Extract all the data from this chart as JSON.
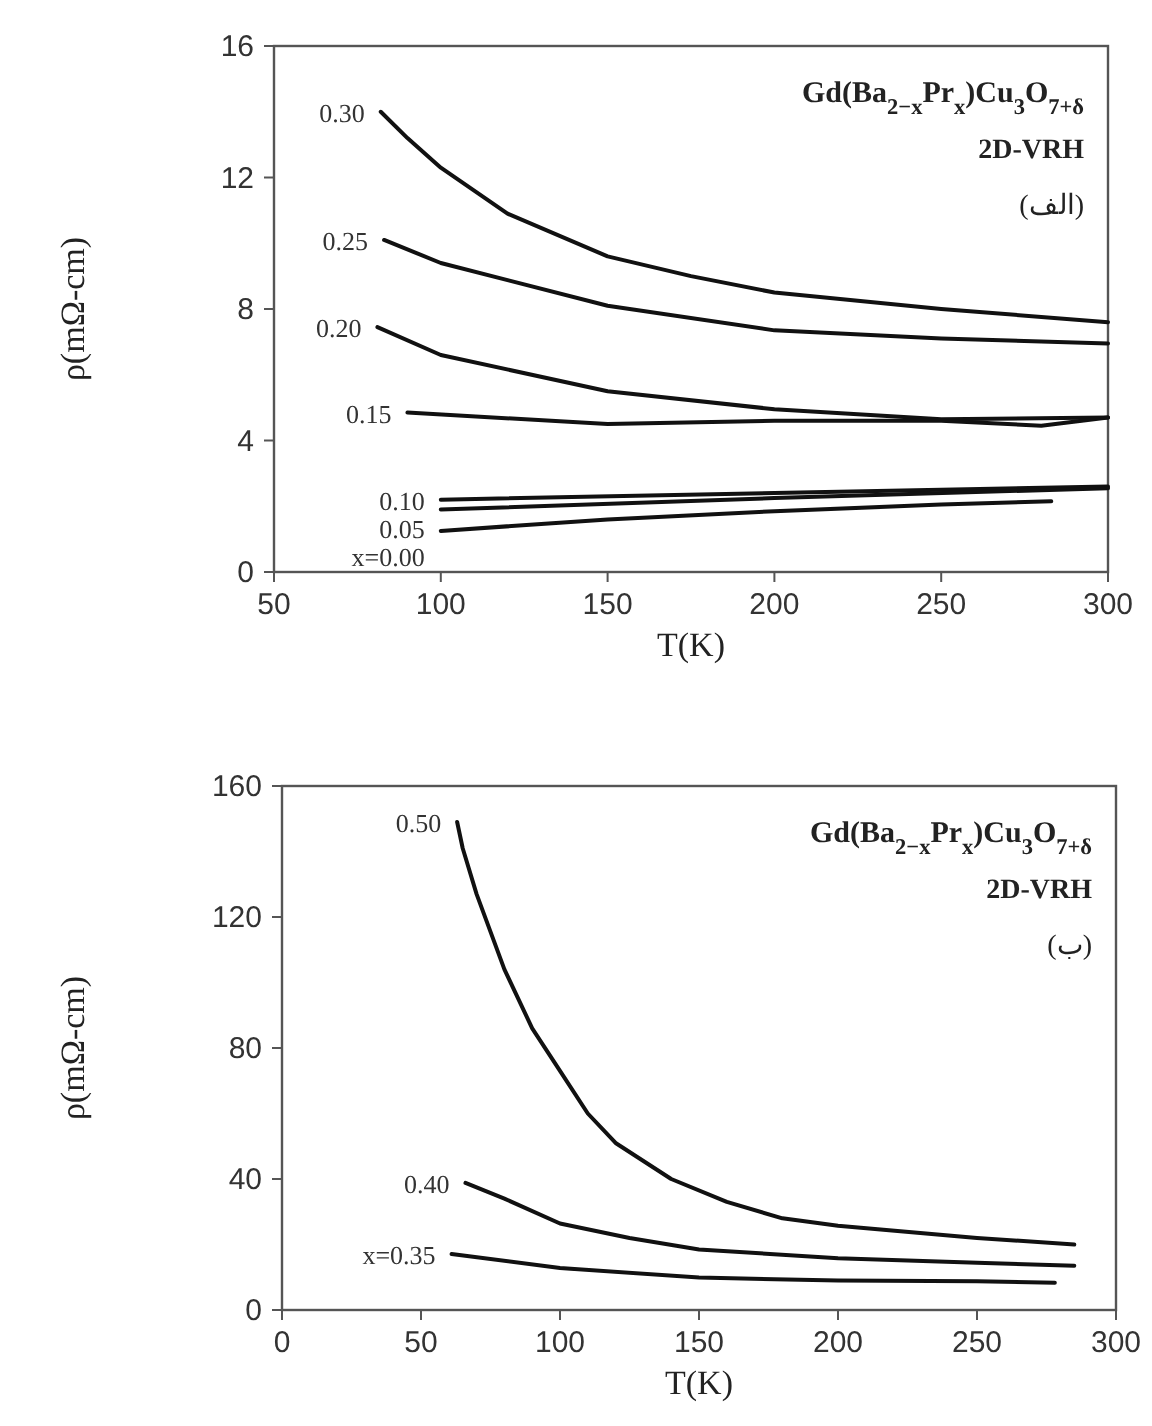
{
  "chart_data": [
    {
      "type": "line",
      "xlabel": "T(K)",
      "ylabel": "ρ(mΩ-cm)",
      "xlim": [
        50,
        300
      ],
      "ylim": [
        0,
        16
      ],
      "xticks": [
        50,
        100,
        150,
        200,
        250,
        300
      ],
      "yticks": [
        0,
        4,
        8,
        12,
        16
      ],
      "grid": false,
      "legend": false,
      "line_style": "solid",
      "marker": "none",
      "annotations": [
        "Gd(Ba$_{2−x}$Pr$_{x}$)Cu$_{3}$O$_{7+δ}$",
        "2D-VRH",
        "(الف)"
      ],
      "series": [
        {
          "name": "0.30",
          "color": "#111111",
          "x": [
            82,
            90,
            100,
            120,
            150,
            175,
            200,
            250,
            300
          ],
          "values": [
            14.0,
            13.2,
            12.3,
            10.9,
            9.6,
            9.0,
            8.5,
            8.0,
            7.6
          ]
        },
        {
          "name": "0.25",
          "color": "#111111",
          "x": [
            83,
            100,
            150,
            200,
            250,
            300
          ],
          "values": [
            10.1,
            9.4,
            8.1,
            7.35,
            7.1,
            6.95
          ]
        },
        {
          "name": "0.20",
          "color": "#111111",
          "x": [
            81,
            100,
            150,
            200,
            250,
            300
          ],
          "values": [
            7.45,
            6.6,
            5.5,
            4.95,
            4.65,
            4.7
          ]
        },
        {
          "name": "0.15",
          "color": "#111111",
          "x": [
            90,
            150,
            200,
            250,
            280,
            300
          ],
          "values": [
            4.85,
            4.5,
            4.6,
            4.6,
            4.45,
            4.7
          ]
        },
        {
          "name": "0.10",
          "color": "#111111",
          "x": [
            100,
            200,
            300
          ],
          "values": [
            2.2,
            2.4,
            2.6
          ]
        },
        {
          "name": "0.05",
          "color": "#111111",
          "x": [
            100,
            200,
            300
          ],
          "values": [
            1.9,
            2.25,
            2.55
          ]
        },
        {
          "name": "x=0.00",
          "color": "#111111",
          "x": [
            100,
            150,
            200,
            250,
            283
          ],
          "values": [
            1.25,
            1.6,
            1.85,
            2.05,
            2.15
          ]
        }
      ]
    },
    {
      "type": "line",
      "xlabel": "T(K)",
      "ylabel": "ρ(mΩ-cm)",
      "xlim": [
        0,
        300
      ],
      "ylim": [
        0,
        160
      ],
      "xticks": [
        0,
        50,
        100,
        150,
        200,
        250,
        300
      ],
      "yticks": [
        0,
        40,
        80,
        120,
        160
      ],
      "grid": false,
      "legend": false,
      "line_style": "solid",
      "marker": "none",
      "annotations": [
        "Gd(Ba$_{2−x}$Pr$_{x}$)Cu$_{3}$O$_{7+δ}$",
        "2D-VRH",
        "(ب)"
      ],
      "series": [
        {
          "name": "0.50",
          "color": "#111111",
          "x": [
            63,
            65,
            70,
            80,
            90,
            100,
            110,
            120,
            140,
            160,
            180,
            200,
            250,
            285
          ],
          "values": [
            149,
            141,
            127,
            104,
            86,
            73,
            60,
            51,
            40,
            33,
            28,
            25.7,
            22,
            20
          ]
        },
        {
          "name": "0.40",
          "color": "#111111",
          "x": [
            66,
            80,
            100,
            125,
            150,
            200,
            250,
            285
          ],
          "values": [
            38.8,
            34,
            26.4,
            22,
            18.5,
            15.8,
            14.4,
            13.5
          ]
        },
        {
          "name": "x=0.35",
          "color": "#111111",
          "x": [
            61,
            100,
            150,
            200,
            250,
            278
          ],
          "values": [
            17.1,
            12.8,
            9.9,
            9,
            8.8,
            8.3
          ]
        }
      ]
    }
  ]
}
